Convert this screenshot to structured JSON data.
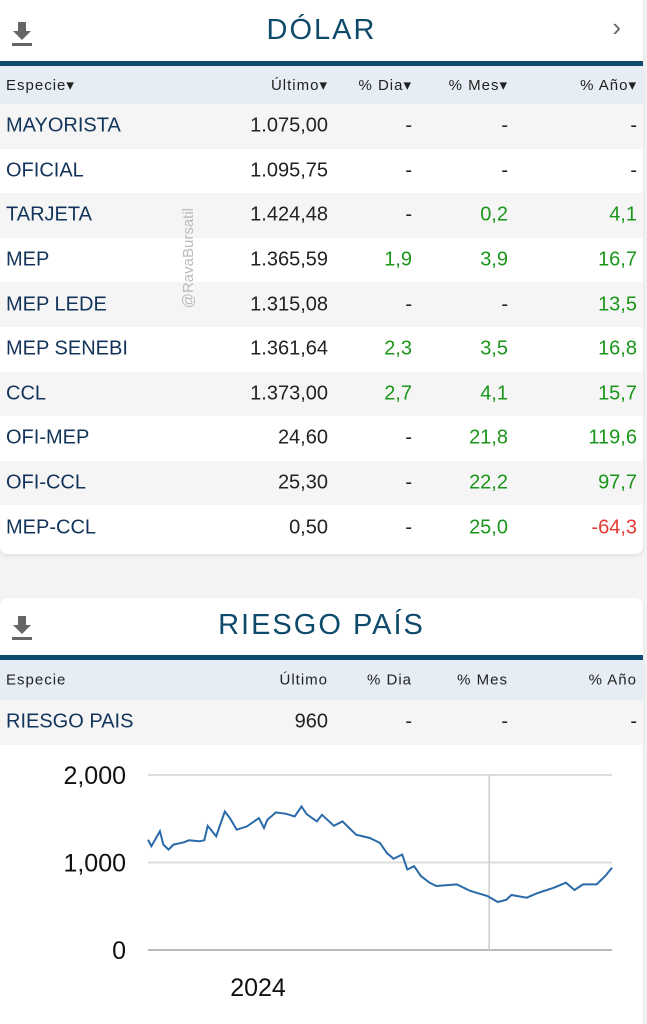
{
  "dolar": {
    "title": "DÓLAR",
    "watermark": "@RavaBursatil",
    "headers": [
      "Especie▾",
      "Último▾",
      "% Dia▾",
      "% Mes▾",
      "% Año▾"
    ],
    "rows": [
      [
        "MAYORISTA",
        "1.075,00",
        "-",
        "-",
        "-"
      ],
      [
        "OFICIAL",
        "1.095,75",
        "-",
        "-",
        "-"
      ],
      [
        "TARJETA",
        "1.424,48",
        "-",
        "0,2",
        "4,1"
      ],
      [
        "MEP",
        "1.365,59",
        "1,9",
        "3,9",
        "16,7"
      ],
      [
        "MEP LEDE",
        "1.315,08",
        "-",
        "-",
        "13,5"
      ],
      [
        "MEP SENEBI",
        "1.361,64",
        "2,3",
        "3,5",
        "16,8"
      ],
      [
        "CCL",
        "1.373,00",
        "2,7",
        "4,1",
        "15,7"
      ],
      [
        "OFI-MEP",
        "24,60",
        "-",
        "21,8",
        "119,6"
      ],
      [
        "OFI-CCL",
        "25,30",
        "-",
        "22,2",
        "97,7"
      ],
      [
        "MEP-CCL",
        "0,50",
        "-",
        "25,0",
        "-64,3"
      ]
    ]
  },
  "riesgo": {
    "title": "RIESGO PAÍS",
    "headers": [
      "Especie",
      "Último",
      "% Dia",
      "% Mes",
      "% Año"
    ],
    "rows": [
      [
        "RIESGO PAIS",
        "960",
        "-",
        "-",
        "-"
      ]
    ]
  },
  "colors": {
    "brand": "#0e4a6b",
    "positive": "#1a961a",
    "negative": "#e53935",
    "line": "#2a6aa8"
  },
  "icons": {
    "download": "download-icon",
    "next": "chevron-right-icon"
  },
  "chart_data": {
    "type": "line",
    "ylim": [
      0,
      2000
    ],
    "yticks": [
      "0",
      "1,000",
      "2,000"
    ],
    "xtick_label": "2024",
    "grid": true,
    "x": [
      2022.0,
      2022.02,
      2022.07,
      2022.09,
      2022.12,
      2022.15,
      2022.21,
      2022.24,
      2022.3,
      2022.33,
      2022.35,
      2022.4,
      2022.45,
      2022.48,
      2022.52,
      2022.58,
      2022.65,
      2022.68,
      2022.7,
      2022.75,
      2022.81,
      2022.86,
      2022.9,
      2022.93,
      2022.99,
      2023.02,
      2023.09,
      2023.14,
      2023.22,
      2023.3,
      2023.36,
      2023.4,
      2023.44,
      2023.49,
      2023.52,
      2023.56,
      2023.6,
      2023.65,
      2023.69,
      2023.81,
      2023.89,
      2023.99,
      2024.05,
      2024.1,
      2024.13,
      2024.22,
      2024.28,
      2024.32,
      2024.38,
      2024.45,
      2024.5,
      2024.55,
      2024.63,
      2024.68,
      2024.72
    ],
    "y": [
      1261,
      1186,
      1356,
      1205,
      1148,
      1205,
      1231,
      1254,
      1242,
      1254,
      1420,
      1300,
      1583,
      1508,
      1375,
      1413,
      1508,
      1394,
      1489,
      1572,
      1557,
      1527,
      1640,
      1553,
      1470,
      1545,
      1420,
      1470,
      1318,
      1280,
      1223,
      1110,
      1042,
      1091,
      920,
      958,
      845,
      769,
      731,
      750,
      674,
      617,
      549,
      572,
      629,
      598,
      648,
      674,
      712,
      769,
      686,
      750,
      750,
      845,
      939
    ],
    "xlim": [
      2022.0,
      2024.72
    ],
    "vline_x": 2024.0
  }
}
